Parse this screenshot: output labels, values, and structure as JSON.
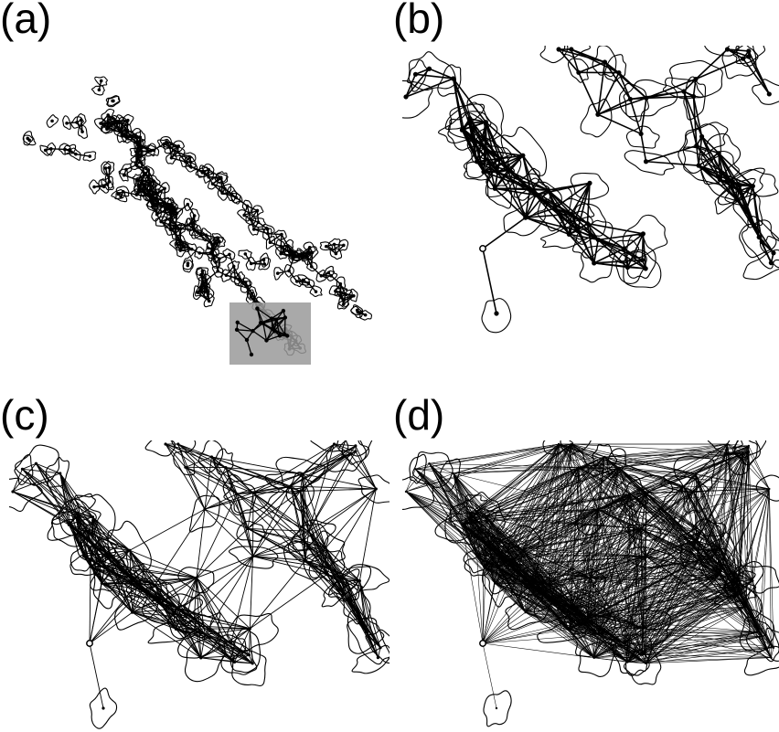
{
  "figure": {
    "panels": [
      {
        "id": "a",
        "label": "(a)"
      },
      {
        "id": "b",
        "label": "(b)"
      },
      {
        "id": "c",
        "label": "(c)"
      },
      {
        "id": "d",
        "label": "(d)"
      }
    ]
  }
}
